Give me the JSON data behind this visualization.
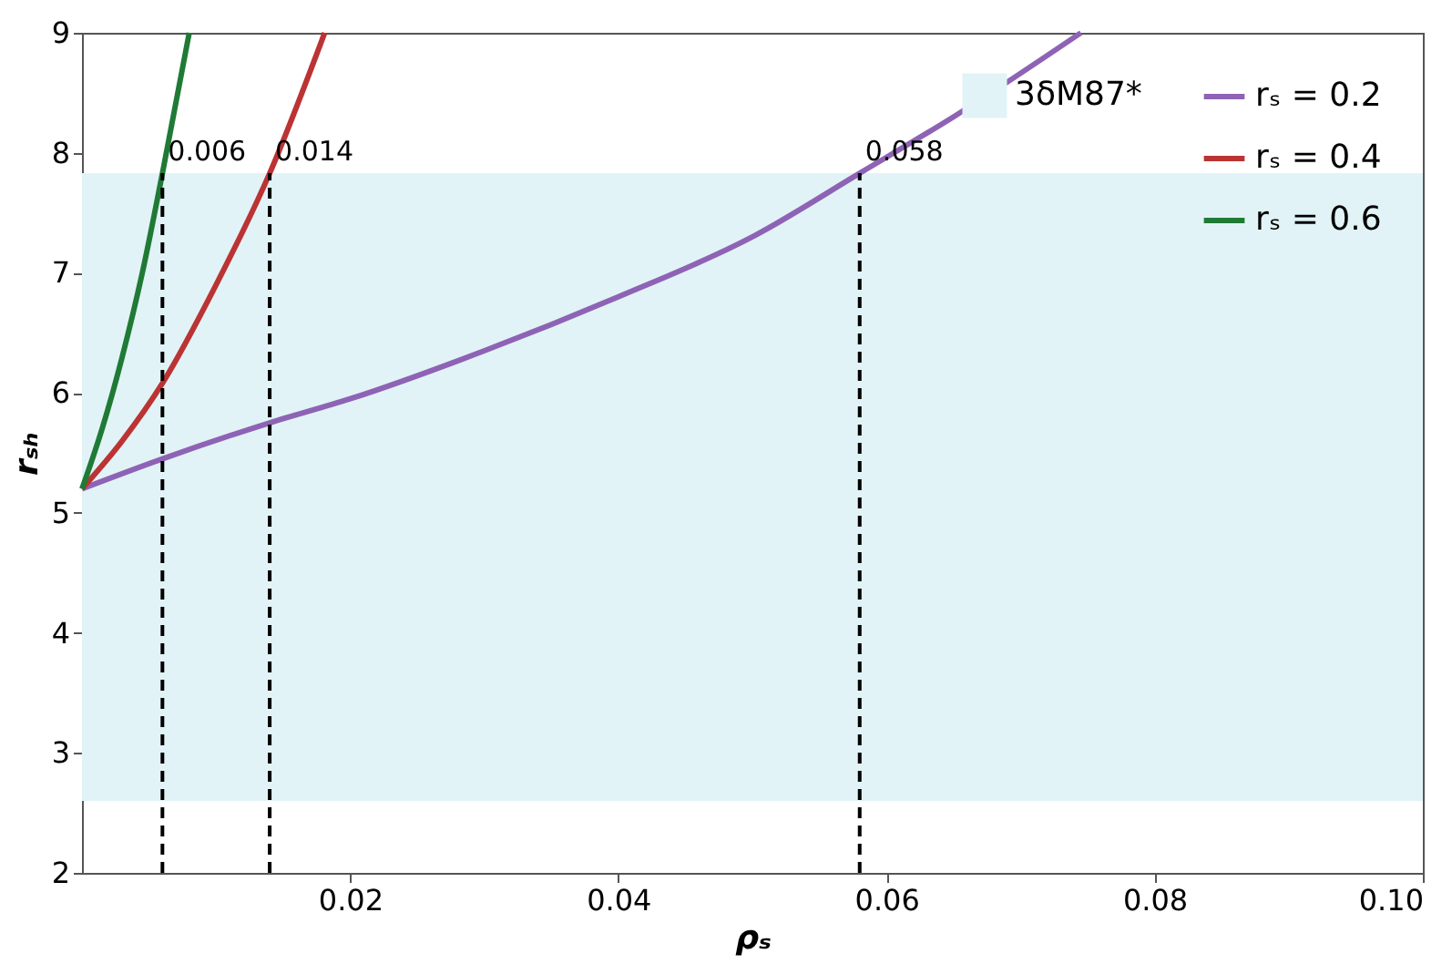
{
  "chart_data": {
    "type": "line",
    "xlabel": "ρₛ",
    "ylabel": "rₛₕ",
    "xlim": [
      0,
      0.1
    ],
    "ylim": [
      2,
      9
    ],
    "xticks": [
      0.02,
      0.04,
      0.06,
      0.08,
      {
        "value": 0.1,
        "label": "0.10"
      }
    ],
    "yticks": [
      2,
      3,
      4,
      5,
      6,
      7,
      8,
      9
    ],
    "grid": false,
    "legend": "top right",
    "line_style": "solid",
    "marker": "none",
    "series": [
      {
        "name": "rₛ = 0.2",
        "color": "#8e63b5",
        "x": [
          0,
          0.006,
          0.014,
          0.02,
          0.03,
          0.04,
          0.05,
          0.058,
          0.065,
          0.0745
        ],
        "values": [
          5.2,
          5.45,
          5.75,
          5.95,
          6.35,
          6.8,
          7.3,
          7.83,
          8.3,
          9
        ]
      },
      {
        "name": "rₛ = 0.4",
        "color": "#bb3333",
        "x": [
          0,
          0.003,
          0.006,
          0.01,
          0.014,
          0.0181
        ],
        "values": [
          5.2,
          5.6,
          6.08,
          6.9,
          7.83,
          9
        ]
      },
      {
        "name": "rₛ = 0.6",
        "color": "#1f7a35",
        "x": [
          0,
          0.0015,
          0.003,
          0.0045,
          0.006,
          0.008
        ],
        "values": [
          5.2,
          5.7,
          6.3,
          7.0,
          7.83,
          9
        ]
      }
    ],
    "bands": [
      {
        "axis": "y",
        "from": 2.6,
        "to": 7.83,
        "label": "3δM87*",
        "color": "#e1f3f6"
      }
    ],
    "ref_lines": [
      {
        "axis": "x",
        "value": 0.006,
        "label": "0.006",
        "color": "#000000",
        "line_style": "dashed"
      },
      {
        "axis": "x",
        "value": 0.014,
        "label": "0.014",
        "color": "#000000",
        "line_style": "dashed"
      },
      {
        "axis": "x",
        "value": 0.058,
        "label": "0.058",
        "color": "#000000",
        "line_style": "dashed"
      }
    ]
  }
}
